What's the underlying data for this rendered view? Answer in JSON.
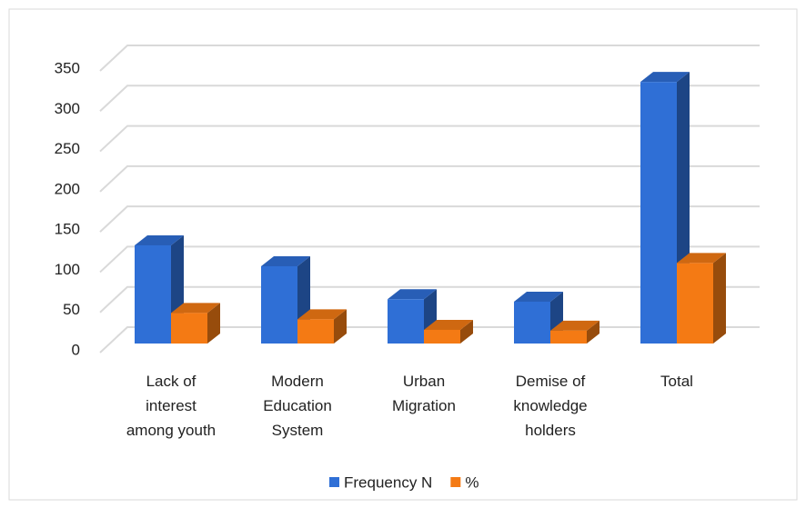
{
  "chart_data": {
    "type": "bar3d",
    "categories": [
      "Lack of interest among youth",
      "Modern Education System",
      "Urban Migration",
      "Demise of knowledge holders",
      "Total"
    ],
    "series": [
      {
        "name": "Frequency N",
        "color": "#2f6fd6",
        "values": [
          122,
          96,
          55,
          52,
          325
        ]
      },
      {
        "name": "%",
        "color": "#f47a14",
        "values": [
          38,
          30,
          17,
          16,
          100
        ]
      }
    ],
    "ylim": [
      0,
      350
    ],
    "yticks": [
      0,
      50,
      100,
      150,
      200,
      250,
      300,
      350
    ],
    "grid": true
  }
}
